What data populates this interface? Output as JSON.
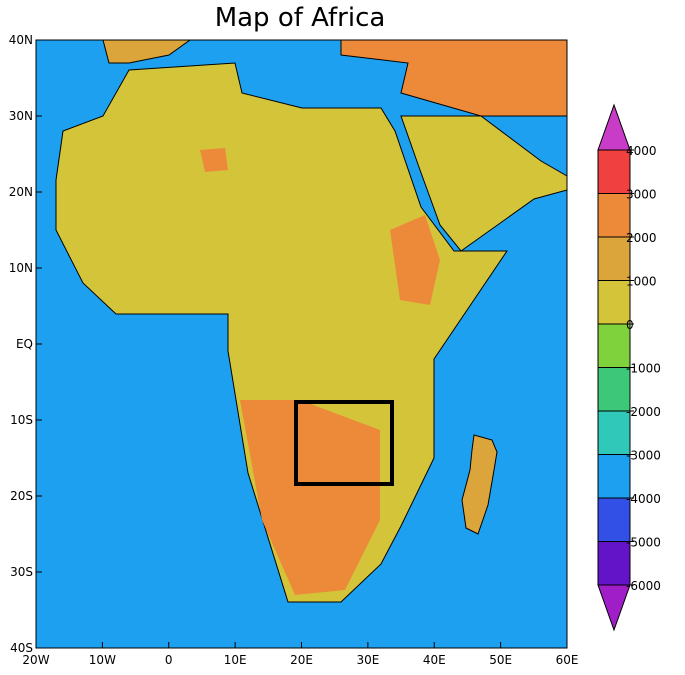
{
  "title": "Map of Africa",
  "x_axis": {
    "ticks": [
      "20W",
      "10W",
      "0",
      "10E",
      "20E",
      "30E",
      "40E",
      "50E",
      "60E"
    ]
  },
  "y_axis": {
    "ticks": [
      "40N",
      "30N",
      "20N",
      "10N",
      "EQ",
      "10S",
      "20S",
      "30S",
      "40S"
    ]
  },
  "colorbar": {
    "ticks": [
      4000,
      3000,
      2000,
      1000,
      0,
      -1000,
      -2000,
      -3000,
      -4000,
      -5000,
      -6000
    ],
    "colors": [
      "#c83cc8",
      "#f04040",
      "#ec8a3a",
      "#dca53c",
      "#d4c43a",
      "#80d23c",
      "#3cc878",
      "#30c8b8",
      "#1ea0f0",
      "#3250e6",
      "#6414c8",
      "#a01ec8"
    ]
  }
}
